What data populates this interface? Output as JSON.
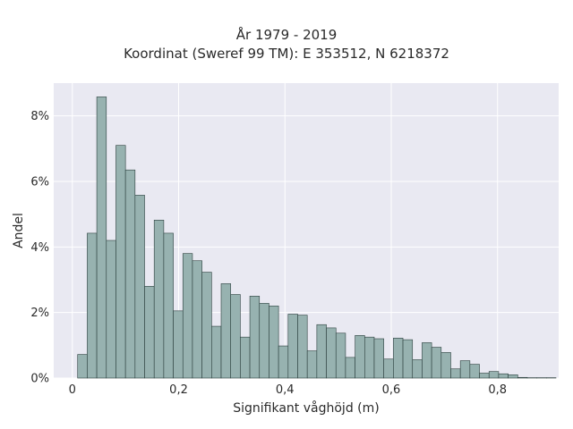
{
  "chart_data": {
    "type": "bar",
    "title": "År 1979 - 2019",
    "subtitle": "Koordinat (Sweref 99 TM): E 353512, N 6218372",
    "xlabel": "Signifikant våghöjd (m)",
    "ylabel": "Andel",
    "xlim": [
      -0.035,
      0.915
    ],
    "ylim": [
      0,
      9.0
    ],
    "xticks": [
      0,
      0.2,
      0.4,
      0.6,
      0.8
    ],
    "xtick_labels": [
      "0",
      "0,2",
      "0,4",
      "0,6",
      "0,8"
    ],
    "yticks": [
      0,
      2,
      4,
      6,
      8
    ],
    "ytick_labels": [
      "0%",
      "2%",
      "4%",
      "6%",
      "8%"
    ],
    "bin_width": 0.018,
    "bins_start": 0.01,
    "values": [
      0.72,
      4.42,
      8.58,
      4.2,
      7.1,
      6.35,
      5.58,
      2.8,
      4.82,
      4.42,
      2.05,
      3.8,
      3.58,
      3.23,
      1.58,
      2.88,
      2.55,
      1.25,
      2.5,
      2.28,
      2.2,
      0.98,
      1.95,
      1.92,
      0.83,
      1.63,
      1.53,
      1.37,
      0.63,
      1.3,
      1.25,
      1.2,
      0.58,
      1.22,
      1.17,
      0.56,
      1.08,
      0.94,
      0.78,
      0.28,
      0.53,
      0.42,
      0.15,
      0.2,
      0.13,
      0.1,
      0.02,
      0.01,
      0.01,
      0.01
    ],
    "grid": true,
    "bar_color": "#97b2b0",
    "edge_color": "#2b3f3d",
    "plot_bg": "#e9e9f2"
  }
}
